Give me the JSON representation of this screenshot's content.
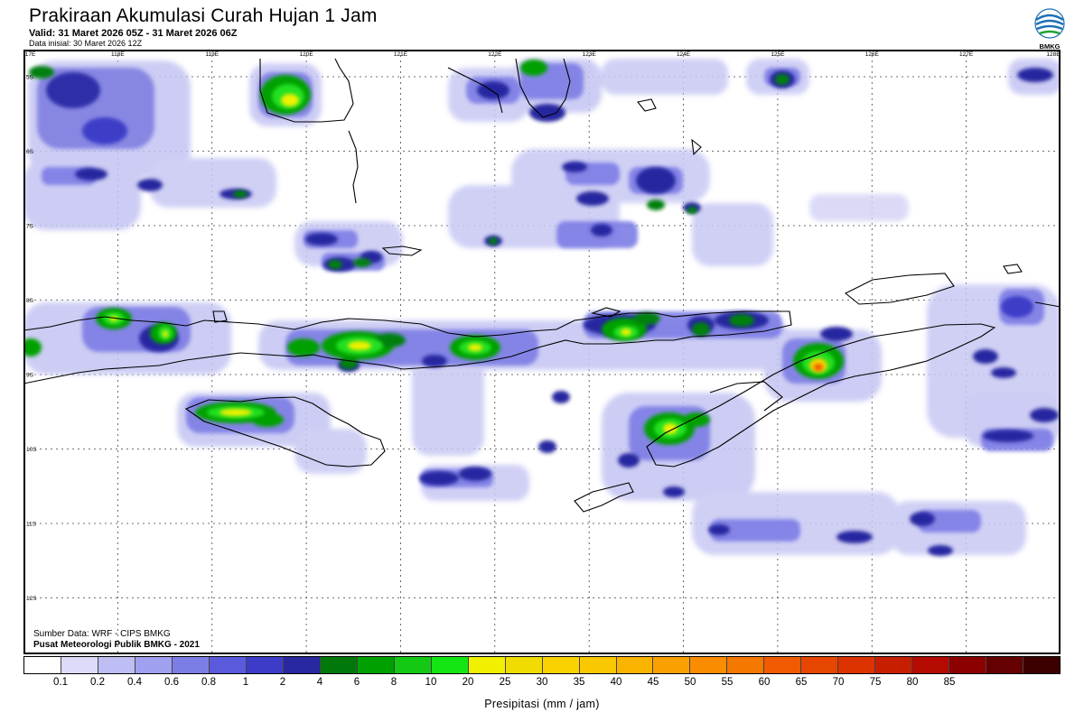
{
  "header": {
    "title": "Prakiraan Akumulasi Curah Hujan 1 Jam",
    "valid": "Valid: 31 Maret 2026 05Z - 31 Maret 2026 06Z",
    "initial": "Data inisial: 30 Maret 2026 12Z"
  },
  "logo": {
    "text": "BMKG",
    "icon": "bmkg-logo-icon"
  },
  "map": {
    "lon_labels": [
      "117E",
      "118E",
      "119E",
      "120E",
      "121E",
      "122E",
      "123E",
      "124E",
      "125E",
      "126E",
      "127E",
      "128E"
    ],
    "lat_labels": [
      "5S",
      "6S",
      "7S",
      "8S",
      "9S",
      "10S",
      "11S",
      "12S"
    ]
  },
  "footer": {
    "source": "Sumber Data: WRF - CIPS BMKG",
    "publisher": "Pusat Meteorologi Publik BMKG - 2021"
  },
  "legend": {
    "title": "Presipitasi (mm / jam)",
    "colors": [
      "#ffffff",
      "#dcdcfa",
      "#bebef5",
      "#a0a0f0",
      "#7d7de6",
      "#5a5adc",
      "#3c3cc8",
      "#2828a0",
      "#00780a",
      "#00a000",
      "#14c814",
      "#14e614",
      "#f0f000",
      "#f0dc00",
      "#fad200",
      "#fac800",
      "#fab400",
      "#faa000",
      "#fa8c00",
      "#f57800",
      "#f05a00",
      "#e64600",
      "#dc3200",
      "#c81e00",
      "#b40a00",
      "#8c0000",
      "#640000",
      "#3c0000"
    ],
    "labels": [
      "0.1",
      "0.2",
      "0.4",
      "0.6",
      "0.8",
      "1",
      "2",
      "4",
      "6",
      "8",
      "10",
      "20",
      "25",
      "30",
      "35",
      "40",
      "45",
      "50",
      "55",
      "60",
      "65",
      "70",
      "75",
      "80",
      "85"
    ]
  }
}
